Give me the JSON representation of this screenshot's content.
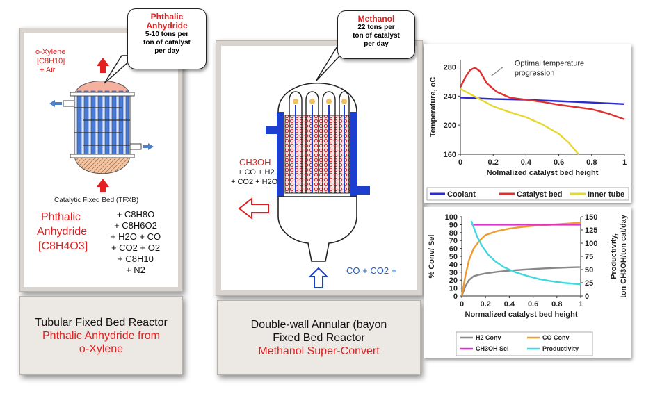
{
  "left_reactor": {
    "feed_label_1": "o-Xylene",
    "feed_label_2": "[C8H10]",
    "feed_label_3": "+ Air",
    "bubble_title_1": "Phthalic",
    "bubble_title_2": "Anhydride",
    "bubble_line_1": "5-10 tons per",
    "bubble_line_2": "ton of catalyst",
    "bubble_line_3": "per day",
    "bed_label": "Catalytic Fixed Bed (TFXB)",
    "product_1": "Phthalic",
    "product_2": "Anhydride",
    "product_3": "[C8H4O3]",
    "byproducts": [
      "+ C8H8O",
      "+ C8H6O2",
      "+ H2O + CO",
      "+ CO2 + O2",
      "+ C8H10",
      "+ N2"
    ],
    "caption_1": "Tubular Fixed Bed Reactor",
    "caption_2": "Phthalic Anhydride from",
    "caption_3": "o-Xylene"
  },
  "middle_reactor": {
    "bubble_title": "Methanol",
    "bubble_line_1": "22 tons per",
    "bubble_line_2": "ton of catalyst",
    "bubble_line_3": "per day",
    "product_1": "CH3OH",
    "product_2": "+ CO + H2",
    "product_3": "+ CO2 + H2O",
    "feed_label": "CO + CO2 +",
    "caption_1": "Double-wall Annular (bayon",
    "caption_2": "Fixed Bed Reactor",
    "caption_3": "Methanol Super-Convert"
  },
  "chart_data": [
    {
      "type": "line",
      "xlabel": "Nolmalized catalyst bed height",
      "ylabel": "Temperature, oC",
      "xlim": [
        0,
        1
      ],
      "ylim": [
        160,
        290
      ],
      "xticks": [
        "0",
        "0.2",
        "0.4",
        "0.6",
        "0.8",
        "1"
      ],
      "yticks": [
        "160",
        "200",
        "240",
        "280"
      ],
      "annotation_1": "Optimal temperature",
      "annotation_2": "progression",
      "legend_position": "bottom",
      "series": [
        {
          "name": "Coolant",
          "color": "#2a2ad0",
          "x": [
            0,
            0.2,
            0.4,
            0.6,
            0.8,
            1.0
          ],
          "y": [
            238,
            236,
            235,
            233,
            231,
            229
          ]
        },
        {
          "name": "Catalyst bed",
          "color": "#e03030",
          "x": [
            0,
            0.03,
            0.06,
            0.09,
            0.12,
            0.16,
            0.22,
            0.3,
            0.4,
            0.5,
            0.6,
            0.7,
            0.8,
            0.9,
            1.0
          ],
          "y": [
            252,
            266,
            276,
            279,
            274,
            258,
            246,
            238,
            235,
            232,
            228,
            225,
            222,
            216,
            208
          ]
        },
        {
          "name": "Inner tube",
          "color": "#e6d830",
          "x": [
            0,
            0.1,
            0.2,
            0.3,
            0.4,
            0.5,
            0.6,
            0.66,
            0.72
          ],
          "y": [
            250,
            238,
            226,
            218,
            211,
            201,
            188,
            176,
            160
          ]
        }
      ]
    },
    {
      "type": "line",
      "xlabel": "Normalized catalyst bed height",
      "ylabel": "% Conv/ Sel",
      "y2label_1": "Productivity,",
      "y2label_2": "ton CH3OH/ton cat/day",
      "xlim": [
        0,
        1
      ],
      "ylim": [
        0,
        100
      ],
      "y2lim": [
        0,
        150
      ],
      "xticks": [
        "0",
        "0.2",
        "0.4",
        "0.6",
        "0.8",
        "1"
      ],
      "yticks": [
        "0",
        "10",
        "20",
        "30",
        "40",
        "50",
        "60",
        "70",
        "80",
        "90",
        "100"
      ],
      "y2ticks": [
        "0",
        "25",
        "50",
        "75",
        "100",
        "125",
        "150"
      ],
      "legend_position": "bottom",
      "series": [
        {
          "name": "H2 Conv",
          "color": "#888888",
          "axis": "left",
          "x": [
            0,
            0.03,
            0.06,
            0.1,
            0.15,
            0.2,
            0.3,
            0.4,
            0.5,
            0.6,
            0.7,
            0.8,
            0.9,
            1.0
          ],
          "y": [
            0,
            12,
            20,
            25,
            27,
            28.5,
            30.5,
            32,
            33,
            34,
            34.8,
            35.5,
            36,
            36.5
          ]
        },
        {
          "name": "CO Conv",
          "color": "#f09a30",
          "axis": "left",
          "x": [
            0,
            0.03,
            0.06,
            0.1,
            0.15,
            0.2,
            0.3,
            0.4,
            0.5,
            0.6,
            0.7,
            0.8,
            0.9,
            1.0
          ],
          "y": [
            0,
            25,
            45,
            60,
            70,
            77,
            82,
            85,
            87,
            88.5,
            89.5,
            90.5,
            91.5,
            92.5
          ]
        },
        {
          "name": "CH3OH Sel",
          "color": "#e030d0",
          "axis": "left",
          "x": [
            0.08,
            0.1,
            0.15,
            0.2,
            0.3,
            0.4,
            0.5,
            0.6,
            0.7,
            0.8,
            0.9,
            1.0
          ],
          "y": [
            91,
            90,
            90,
            90,
            90,
            90,
            90,
            90,
            90,
            90,
            90,
            90
          ]
        },
        {
          "name": "Productivity",
          "color": "#40d8e0",
          "axis": "right",
          "x": [
            0.08,
            0.1,
            0.13,
            0.17,
            0.22,
            0.28,
            0.35,
            0.45,
            0.55,
            0.65,
            0.75,
            0.85,
            0.95,
            1.0
          ],
          "y": [
            142,
            130,
            112,
            95,
            79,
            66,
            55,
            45,
            38,
            32,
            28,
            25,
            23,
            22
          ]
        }
      ]
    }
  ]
}
